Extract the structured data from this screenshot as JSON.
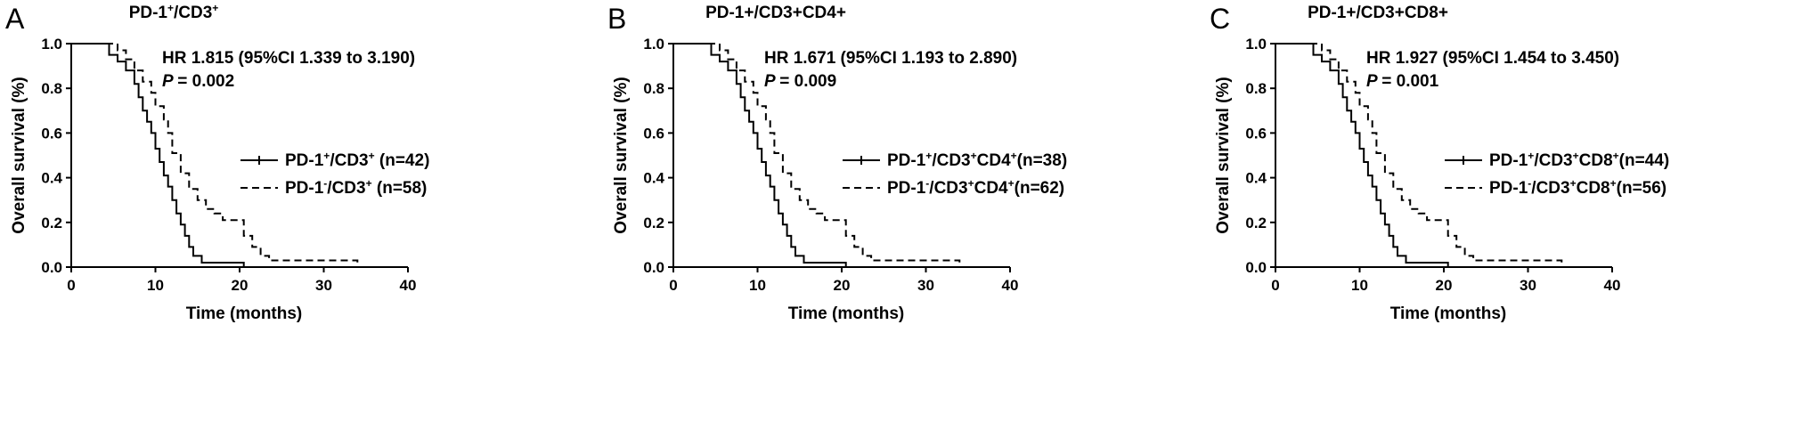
{
  "chart_data": [
    {
      "panel_letter": "A",
      "type": "line",
      "title_parts": [
        [
          "PD-1",
          ""
        ],
        [
          "+",
          "sup"
        ],
        [
          "/CD3",
          ""
        ],
        [
          "+",
          "sup"
        ]
      ],
      "xlabel": "Time (months)",
      "ylabel": "Overall survival (%)",
      "xlim": [
        0,
        40
      ],
      "ylim": [
        0,
        1.0
      ],
      "xticks": [
        "0",
        "10",
        "20",
        "30",
        "40"
      ],
      "yticks": [
        "0.0",
        "0.2",
        "0.4",
        "0.6",
        "0.8",
        "1.0"
      ],
      "hr_text": "HR 1.815 (95%CI 1.339 to 3.190)",
      "p_text": "= 0.002",
      "legend": [
        {
          "parts": [
            [
              "PD-1",
              ""
            ],
            [
              "+",
              "sup"
            ],
            [
              "/CD3",
              ""
            ],
            [
              "+",
              "sup"
            ],
            [
              " (n=42)",
              ""
            ]
          ],
          "style": "solid"
        },
        {
          "parts": [
            [
              "PD-1",
              ""
            ],
            [
              "-",
              "sup"
            ],
            [
              "/CD3",
              ""
            ],
            [
              "+",
              "sup"
            ],
            [
              " (n=58)",
              ""
            ]
          ],
          "style": "dashed"
        }
      ],
      "series": [
        {
          "style": "solid",
          "x": [
            0,
            4.5,
            4.5,
            5.5,
            5.5,
            6.5,
            6.5,
            7.5,
            7.5,
            8.0,
            8.0,
            8.5,
            8.5,
            9.0,
            9.0,
            9.5,
            9.5,
            10.0,
            10.0,
            10.5,
            10.5,
            11.0,
            11.0,
            11.5,
            11.5,
            12.0,
            12.0,
            12.5,
            12.5,
            13.0,
            13.0,
            13.5,
            13.5,
            14.0,
            14.0,
            14.5,
            14.5,
            15.5,
            15.5,
            20.5,
            20.5,
            22.0
          ],
          "y": [
            1.0,
            1.0,
            0.95,
            0.95,
            0.92,
            0.92,
            0.88,
            0.88,
            0.82,
            0.82,
            0.76,
            0.76,
            0.7,
            0.7,
            0.65,
            0.65,
            0.6,
            0.6,
            0.53,
            0.53,
            0.47,
            0.47,
            0.41,
            0.41,
            0.36,
            0.36,
            0.3,
            0.3,
            0.24,
            0.24,
            0.19,
            0.19,
            0.14,
            0.14,
            0.09,
            0.09,
            0.05,
            0.05,
            0.02,
            0.02,
            0.0,
            0.0
          ]
        },
        {
          "style": "dashed",
          "x": [
            0,
            5.5,
            5.5,
            6.5,
            6.5,
            7.5,
            7.5,
            8.5,
            8.5,
            9.5,
            9.5,
            10.0,
            10.0,
            11.0,
            11.0,
            11.5,
            11.5,
            12.0,
            12.0,
            13.0,
            13.0,
            14.0,
            14.0,
            15.0,
            15.0,
            16.0,
            16.0,
            17.0,
            17.0,
            18.0,
            18.0,
            20.5,
            20.5,
            21.5,
            21.5,
            22.5,
            22.5,
            23.5,
            23.5,
            34.0,
            34.0
          ],
          "y": [
            1.0,
            1.0,
            0.97,
            0.97,
            0.93,
            0.93,
            0.88,
            0.88,
            0.83,
            0.83,
            0.78,
            0.78,
            0.72,
            0.72,
            0.66,
            0.66,
            0.6,
            0.6,
            0.51,
            0.51,
            0.42,
            0.42,
            0.35,
            0.35,
            0.3,
            0.3,
            0.26,
            0.26,
            0.24,
            0.24,
            0.21,
            0.21,
            0.14,
            0.14,
            0.09,
            0.09,
            0.05,
            0.05,
            0.03,
            0.03,
            0.0
          ]
        }
      ]
    },
    {
      "panel_letter": "B",
      "type": "line",
      "title_parts": [
        [
          "PD-1+/CD3+CD4+",
          ""
        ]
      ],
      "xlabel": "Time (months)",
      "ylabel": "Overall survival (%)",
      "xlim": [
        0,
        40
      ],
      "ylim": [
        0,
        1.0
      ],
      "xticks": [
        "0",
        "10",
        "20",
        "30",
        "40"
      ],
      "yticks": [
        "0.0",
        "0.2",
        "0.4",
        "0.6",
        "0.8",
        "1.0"
      ],
      "hr_text": "HR 1.671 (95%CI 1.193 to 2.890)",
      "p_text": "= 0.009",
      "legend": [
        {
          "parts": [
            [
              "PD-1",
              ""
            ],
            [
              "+",
              "sup"
            ],
            [
              "/CD3",
              ""
            ],
            [
              "+",
              "sup"
            ],
            [
              "CD4",
              ""
            ],
            [
              "+",
              "sup"
            ],
            [
              "(n=38)",
              ""
            ]
          ],
          "style": "solid"
        },
        {
          "parts": [
            [
              "PD-1",
              ""
            ],
            [
              "-",
              "sup"
            ],
            [
              "/CD3",
              ""
            ],
            [
              "+",
              "sup"
            ],
            [
              "CD4",
              ""
            ],
            [
              "+",
              "sup"
            ],
            [
              "(n=62)",
              ""
            ]
          ],
          "style": "dashed"
        }
      ],
      "series": [
        {
          "style": "solid",
          "x": [
            0,
            4.5,
            4.5,
            5.5,
            5.5,
            6.5,
            6.5,
            7.5,
            7.5,
            8.0,
            8.0,
            8.5,
            8.5,
            9.0,
            9.0,
            9.5,
            9.5,
            10.0,
            10.0,
            10.5,
            10.5,
            11.0,
            11.0,
            11.5,
            11.5,
            12.0,
            12.0,
            12.5,
            12.5,
            13.0,
            13.0,
            13.5,
            13.5,
            14.0,
            14.0,
            14.5,
            14.5,
            15.5,
            15.5,
            20.5,
            20.5,
            22.0
          ],
          "y": [
            1.0,
            1.0,
            0.95,
            0.95,
            0.92,
            0.92,
            0.88,
            0.88,
            0.82,
            0.82,
            0.76,
            0.76,
            0.7,
            0.7,
            0.65,
            0.65,
            0.6,
            0.6,
            0.53,
            0.53,
            0.47,
            0.47,
            0.41,
            0.41,
            0.36,
            0.36,
            0.3,
            0.3,
            0.24,
            0.24,
            0.19,
            0.19,
            0.14,
            0.14,
            0.09,
            0.09,
            0.05,
            0.05,
            0.02,
            0.02,
            0.0,
            0.0
          ]
        },
        {
          "style": "dashed",
          "x": [
            0,
            5.5,
            5.5,
            6.5,
            6.5,
            7.5,
            7.5,
            8.5,
            8.5,
            9.5,
            9.5,
            10.0,
            10.0,
            11.0,
            11.0,
            11.5,
            11.5,
            12.0,
            12.0,
            13.0,
            13.0,
            14.0,
            14.0,
            15.0,
            15.0,
            16.0,
            16.0,
            17.0,
            17.0,
            18.0,
            18.0,
            20.5,
            20.5,
            21.5,
            21.5,
            22.5,
            22.5,
            23.5,
            23.5,
            34.0,
            34.0
          ],
          "y": [
            1.0,
            1.0,
            0.97,
            0.97,
            0.93,
            0.93,
            0.88,
            0.88,
            0.83,
            0.83,
            0.78,
            0.78,
            0.72,
            0.72,
            0.66,
            0.66,
            0.6,
            0.6,
            0.51,
            0.51,
            0.42,
            0.42,
            0.35,
            0.35,
            0.3,
            0.3,
            0.26,
            0.26,
            0.24,
            0.24,
            0.21,
            0.21,
            0.14,
            0.14,
            0.09,
            0.09,
            0.05,
            0.05,
            0.03,
            0.03,
            0.0
          ]
        }
      ]
    },
    {
      "panel_letter": "C",
      "type": "line",
      "title_parts": [
        [
          "PD-1+/CD3+CD8+",
          ""
        ]
      ],
      "xlabel": "Time (months)",
      "ylabel": "Overall survival (%)",
      "xlim": [
        0,
        40
      ],
      "ylim": [
        0,
        1.0
      ],
      "xticks": [
        "0",
        "10",
        "20",
        "30",
        "40"
      ],
      "yticks": [
        "0.0",
        "0.2",
        "0.4",
        "0.6",
        "0.8",
        "1.0"
      ],
      "hr_text": "HR 1.927 (95%CI 1.454 to 3.450)",
      "p_text": "= 0.001",
      "legend": [
        {
          "parts": [
            [
              "PD-1",
              ""
            ],
            [
              "+",
              "sup"
            ],
            [
              "/CD3",
              ""
            ],
            [
              "+",
              "sup"
            ],
            [
              "CD8",
              ""
            ],
            [
              "+",
              "sup"
            ],
            [
              "(n=44)",
              ""
            ]
          ],
          "style": "solid"
        },
        {
          "parts": [
            [
              "PD-1",
              ""
            ],
            [
              "-",
              "sup"
            ],
            [
              "/CD3",
              ""
            ],
            [
              "+",
              "sup"
            ],
            [
              "CD8",
              ""
            ],
            [
              "+",
              "sup"
            ],
            [
              "(n=56)",
              ""
            ]
          ],
          "style": "dashed"
        }
      ],
      "series": [
        {
          "style": "solid",
          "x": [
            0,
            4.5,
            4.5,
            5.5,
            5.5,
            6.5,
            6.5,
            7.5,
            7.5,
            8.0,
            8.0,
            8.5,
            8.5,
            9.0,
            9.0,
            9.5,
            9.5,
            10.0,
            10.0,
            10.5,
            10.5,
            11.0,
            11.0,
            11.5,
            11.5,
            12.0,
            12.0,
            12.5,
            12.5,
            13.0,
            13.0,
            13.5,
            13.5,
            14.0,
            14.0,
            14.5,
            14.5,
            15.5,
            15.5,
            20.5,
            20.5,
            22.0
          ],
          "y": [
            1.0,
            1.0,
            0.95,
            0.95,
            0.92,
            0.92,
            0.88,
            0.88,
            0.82,
            0.82,
            0.76,
            0.76,
            0.7,
            0.7,
            0.65,
            0.65,
            0.6,
            0.6,
            0.53,
            0.53,
            0.47,
            0.47,
            0.41,
            0.41,
            0.36,
            0.36,
            0.3,
            0.3,
            0.24,
            0.24,
            0.19,
            0.19,
            0.14,
            0.14,
            0.09,
            0.09,
            0.05,
            0.05,
            0.02,
            0.02,
            0.0,
            0.0
          ]
        },
        {
          "style": "dashed",
          "x": [
            0,
            5.5,
            5.5,
            6.5,
            6.5,
            7.5,
            7.5,
            8.5,
            8.5,
            9.5,
            9.5,
            10.0,
            10.0,
            11.0,
            11.0,
            11.5,
            11.5,
            12.0,
            12.0,
            13.0,
            13.0,
            14.0,
            14.0,
            15.0,
            15.0,
            16.0,
            16.0,
            17.0,
            17.0,
            18.0,
            18.0,
            20.5,
            20.5,
            21.5,
            21.5,
            22.5,
            22.5,
            23.5,
            23.5,
            34.0,
            34.0
          ],
          "y": [
            1.0,
            1.0,
            0.97,
            0.97,
            0.93,
            0.93,
            0.88,
            0.88,
            0.83,
            0.83,
            0.78,
            0.78,
            0.72,
            0.72,
            0.66,
            0.66,
            0.6,
            0.6,
            0.51,
            0.51,
            0.42,
            0.42,
            0.35,
            0.35,
            0.3,
            0.3,
            0.26,
            0.26,
            0.24,
            0.24,
            0.21,
            0.21,
            0.14,
            0.14,
            0.09,
            0.09,
            0.05,
            0.05,
            0.03,
            0.03,
            0.0
          ]
        }
      ]
    }
  ]
}
